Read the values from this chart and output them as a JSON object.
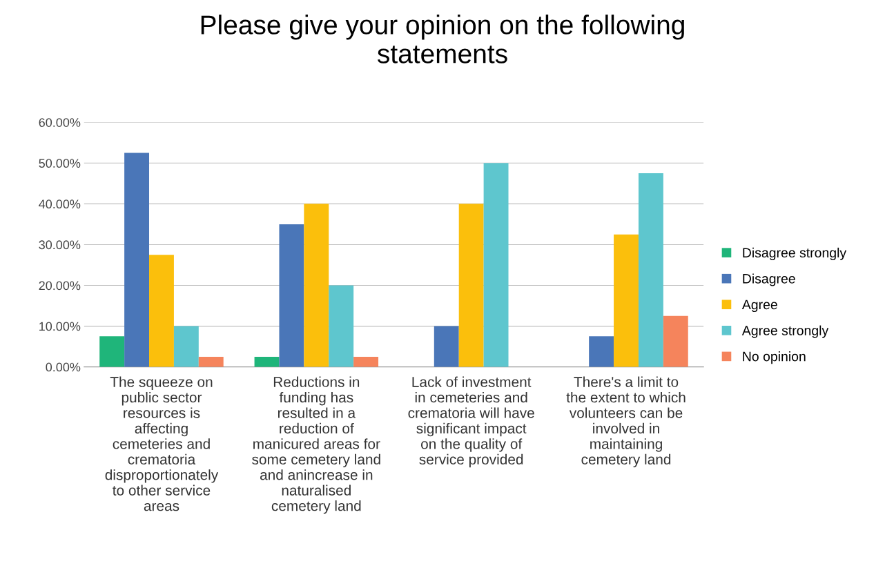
{
  "chart_data": {
    "type": "bar",
    "title": "Please give your opinion on the following\nstatements",
    "categories": [
      "The squeeze on\npublic sector\nresources is\naffecting\ncemeteries and\ncrematoria\ndisproportionately\nto other service\nareas",
      "Reductions in\nfunding has\nresulted in a\nreduction of\nmanicured areas for\nsome cemetery land\nand anincrease in\nnaturalised\ncemetery land",
      "Lack of investment\nin cemeteries and\ncrematoria will have\nsignificant impact\non the quality of\nservice provided",
      "There's a limit to\nthe extent to which\nvolunteers can be\ninvolved in\nmaintaining\ncemetery land"
    ],
    "series": [
      {
        "name": "Disagree strongly",
        "color": "#1fb57a",
        "values": [
          7.5,
          2.5,
          0,
          0
        ]
      },
      {
        "name": "Disagree",
        "color": "#4a76b8",
        "values": [
          52.5,
          35,
          10,
          7.5
        ]
      },
      {
        "name": "Agree",
        "color": "#fbbf0c",
        "values": [
          27.5,
          40,
          40,
          32.5
        ]
      },
      {
        "name": "Agree strongly",
        "color": "#5ec6ce",
        "values": [
          10,
          20,
          50,
          47.5
        ]
      },
      {
        "name": "No opinion",
        "color": "#f5845c",
        "values": [
          2.5,
          2.5,
          0,
          12.5
        ]
      }
    ],
    "ylim": [
      0,
      60
    ],
    "yticks": [
      {
        "value": 0,
        "label": "0.00%"
      },
      {
        "value": 10,
        "label": "10.00%"
      },
      {
        "value": 20,
        "label": "20.00%"
      },
      {
        "value": 30,
        "label": "30.00%"
      },
      {
        "value": 40,
        "label": "40.00%"
      },
      {
        "value": 50,
        "label": "50.00%"
      },
      {
        "value": 60,
        "label": "60.00%"
      }
    ],
    "grid": "y",
    "legend": "right"
  }
}
